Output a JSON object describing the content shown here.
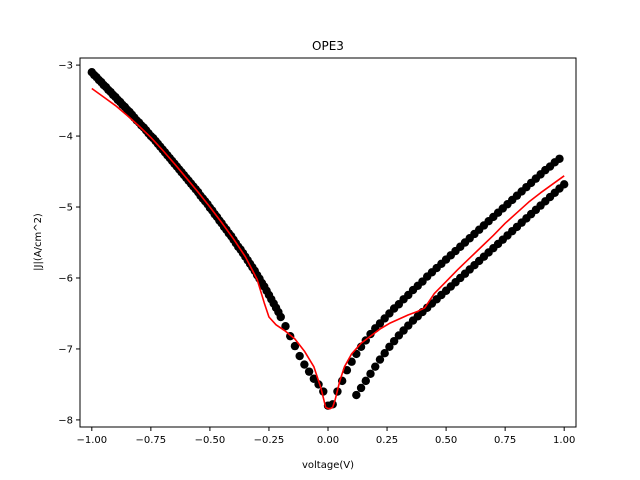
{
  "chart_data": {
    "type": "scatter",
    "title": "OPE3",
    "xlabel": "voltage(V)",
    "ylabel": "|J|(A/cm^2)",
    "xlim": [
      -1.05,
      1.05
    ],
    "ylim": [
      -8.1,
      -2.9
    ],
    "x_ticks": [
      -1.0,
      -0.75,
      -0.5,
      -0.25,
      0.0,
      0.25,
      0.5,
      0.75,
      1.0
    ],
    "x_tick_labels": [
      "−1.00",
      "−0.75",
      "−0.50",
      "−0.25",
      "0.00",
      "0.25",
      "0.50",
      "0.75",
      "1.00"
    ],
    "y_ticks": [
      -8,
      -7,
      -6,
      -5,
      -4,
      -3
    ],
    "y_tick_labels": [
      "−8",
      "−7",
      "−6",
      "−5",
      "−4",
      "−3"
    ],
    "grid": false,
    "series": [
      {
        "kind": "scatter",
        "color": "#000000",
        "points": [
          [
            -1.0,
            -3.1
          ],
          [
            -0.98,
            -3.17
          ],
          [
            -0.96,
            -3.24
          ],
          [
            -0.94,
            -3.31
          ],
          [
            -0.92,
            -3.38
          ],
          [
            -0.9,
            -3.45
          ],
          [
            -0.88,
            -3.52
          ],
          [
            -0.86,
            -3.59
          ],
          [
            -0.84,
            -3.66
          ],
          [
            -0.82,
            -3.74
          ],
          [
            -0.8,
            -3.81
          ],
          [
            -0.78,
            -3.88
          ],
          [
            -0.76,
            -3.96
          ],
          [
            -0.74,
            -4.03
          ],
          [
            -0.72,
            -4.11
          ],
          [
            -0.7,
            -4.19
          ],
          [
            -0.68,
            -4.27
          ],
          [
            -0.66,
            -4.35
          ],
          [
            -0.64,
            -4.43
          ],
          [
            -0.62,
            -4.51
          ],
          [
            -0.6,
            -4.59
          ],
          [
            -0.58,
            -4.67
          ],
          [
            -0.56,
            -4.75
          ],
          [
            -0.54,
            -4.84
          ],
          [
            -0.52,
            -4.92
          ],
          [
            -0.5,
            -5.01
          ],
          [
            -0.48,
            -5.1
          ],
          [
            -0.46,
            -5.19
          ],
          [
            -0.44,
            -5.28
          ],
          [
            -0.42,
            -5.37
          ],
          [
            -0.4,
            -5.46
          ],
          [
            -0.38,
            -5.56
          ],
          [
            -0.36,
            -5.65
          ],
          [
            -0.34,
            -5.75
          ],
          [
            -0.32,
            -5.85
          ],
          [
            -0.3,
            -5.96
          ],
          [
            -0.28,
            -6.07
          ],
          [
            -0.26,
            -6.18
          ],
          [
            -0.24,
            -6.3
          ],
          [
            -0.22,
            -6.42
          ],
          [
            -0.2,
            -6.55
          ],
          [
            -0.18,
            -6.68
          ],
          [
            -0.16,
            -6.82
          ],
          [
            -0.14,
            -6.96
          ],
          [
            -0.12,
            -7.1
          ],
          [
            -0.1,
            -7.22
          ],
          [
            -0.08,
            -7.32
          ],
          [
            -0.06,
            -7.42
          ],
          [
            -0.04,
            -7.5
          ],
          [
            -0.02,
            -7.6
          ],
          [
            0.0,
            -7.8
          ],
          [
            0.02,
            -7.78
          ],
          [
            0.04,
            -7.6
          ],
          [
            0.06,
            -7.45
          ],
          [
            0.08,
            -7.3
          ],
          [
            0.1,
            -7.18
          ],
          [
            0.12,
            -7.07
          ],
          [
            0.14,
            -6.97
          ],
          [
            0.16,
            -6.88
          ],
          [
            0.18,
            -6.79
          ],
          [
            0.2,
            -6.71
          ],
          [
            0.22,
            -6.64
          ],
          [
            0.24,
            -6.57
          ],
          [
            0.26,
            -6.5
          ],
          [
            0.28,
            -6.43
          ],
          [
            0.3,
            -6.37
          ],
          [
            0.32,
            -6.3
          ],
          [
            0.34,
            -6.24
          ],
          [
            0.36,
            -6.17
          ],
          [
            0.38,
            -6.11
          ],
          [
            0.4,
            -6.05
          ],
          [
            0.42,
            -5.98
          ],
          [
            0.44,
            -5.92
          ],
          [
            0.46,
            -5.86
          ],
          [
            0.48,
            -5.8
          ],
          [
            0.5,
            -5.74
          ],
          [
            0.52,
            -5.68
          ],
          [
            0.54,
            -5.62
          ],
          [
            0.56,
            -5.56
          ],
          [
            0.58,
            -5.5
          ],
          [
            0.6,
            -5.44
          ],
          [
            0.62,
            -5.38
          ],
          [
            0.64,
            -5.32
          ],
          [
            0.66,
            -5.26
          ],
          [
            0.68,
            -5.2
          ],
          [
            0.7,
            -5.14
          ],
          [
            0.72,
            -5.08
          ],
          [
            0.74,
            -5.02
          ],
          [
            0.76,
            -4.96
          ],
          [
            0.78,
            -4.9
          ],
          [
            0.8,
            -4.84
          ],
          [
            0.82,
            -4.78
          ],
          [
            0.84,
            -4.72
          ],
          [
            0.86,
            -4.66
          ],
          [
            0.88,
            -4.6
          ],
          [
            0.9,
            -4.54
          ],
          [
            0.92,
            -4.48
          ],
          [
            0.94,
            -4.43
          ],
          [
            0.96,
            -4.37
          ],
          [
            0.98,
            -4.32
          ],
          [
            1.0,
            -4.68
          ],
          [
            0.98,
            -4.74
          ],
          [
            0.96,
            -4.8
          ],
          [
            0.94,
            -4.86
          ],
          [
            0.92,
            -4.92
          ],
          [
            0.9,
            -4.98
          ],
          [
            0.88,
            -5.04
          ],
          [
            0.86,
            -5.1
          ],
          [
            0.84,
            -5.16
          ],
          [
            0.82,
            -5.22
          ],
          [
            0.8,
            -5.28
          ],
          [
            0.78,
            -5.34
          ],
          [
            0.76,
            -5.4
          ],
          [
            0.74,
            -5.46
          ],
          [
            0.72,
            -5.52
          ],
          [
            0.7,
            -5.58
          ],
          [
            0.68,
            -5.64
          ],
          [
            0.66,
            -5.7
          ],
          [
            0.64,
            -5.76
          ],
          [
            0.62,
            -5.82
          ],
          [
            0.6,
            -5.88
          ],
          [
            0.58,
            -5.94
          ],
          [
            0.56,
            -6.0
          ],
          [
            0.54,
            -6.06
          ],
          [
            0.52,
            -6.12
          ],
          [
            0.5,
            -6.18
          ],
          [
            0.48,
            -6.24
          ],
          [
            0.46,
            -6.3
          ],
          [
            0.44,
            -6.36
          ],
          [
            0.42,
            -6.42
          ],
          [
            0.4,
            -6.48
          ],
          [
            0.38,
            -6.54
          ],
          [
            0.36,
            -6.6
          ],
          [
            0.34,
            -6.67
          ],
          [
            0.32,
            -6.74
          ],
          [
            0.3,
            -6.81
          ],
          [
            0.28,
            -6.89
          ],
          [
            0.26,
            -6.97
          ],
          [
            0.24,
            -7.06
          ],
          [
            0.22,
            -7.15
          ],
          [
            0.2,
            -7.25
          ],
          [
            0.18,
            -7.35
          ],
          [
            0.16,
            -7.45
          ],
          [
            0.14,
            -7.55
          ],
          [
            0.12,
            -7.65
          ],
          [
            -0.99,
            -3.14
          ],
          [
            -0.97,
            -3.21
          ],
          [
            -0.95,
            -3.28
          ],
          [
            -0.93,
            -3.35
          ],
          [
            -0.91,
            -3.42
          ],
          [
            -0.89,
            -3.49
          ],
          [
            -0.87,
            -3.56
          ],
          [
            -0.85,
            -3.63
          ],
          [
            -0.83,
            -3.7
          ],
          [
            -0.81,
            -3.78
          ],
          [
            -0.79,
            -3.85
          ],
          [
            -0.77,
            -3.92
          ],
          [
            -0.75,
            -4.0
          ],
          [
            -0.73,
            -4.07
          ],
          [
            -0.71,
            -4.15
          ],
          [
            -0.69,
            -4.23
          ],
          [
            -0.67,
            -4.31
          ],
          [
            -0.65,
            -4.39
          ],
          [
            -0.63,
            -4.47
          ],
          [
            -0.61,
            -4.55
          ],
          [
            -0.59,
            -4.63
          ],
          [
            -0.57,
            -4.71
          ],
          [
            -0.55,
            -4.79
          ],
          [
            -0.53,
            -4.88
          ],
          [
            -0.51,
            -4.96
          ],
          [
            -0.49,
            -5.05
          ],
          [
            -0.47,
            -5.14
          ],
          [
            -0.45,
            -5.23
          ],
          [
            -0.43,
            -5.32
          ],
          [
            -0.41,
            -5.41
          ],
          [
            -0.39,
            -5.51
          ],
          [
            -0.37,
            -5.6
          ],
          [
            -0.35,
            -5.7
          ],
          [
            -0.33,
            -5.8
          ],
          [
            -0.31,
            -5.9
          ],
          [
            -0.29,
            -6.01
          ],
          [
            -0.27,
            -6.12
          ],
          [
            -0.25,
            -6.24
          ],
          [
            -0.23,
            -6.36
          ],
          [
            -0.21,
            -6.48
          ]
        ]
      },
      {
        "kind": "line",
        "color": "#ff0000",
        "points": [
          [
            -1.0,
            -3.33
          ],
          [
            -0.95,
            -3.45
          ],
          [
            -0.9,
            -3.57
          ],
          [
            -0.85,
            -3.71
          ],
          [
            -0.8,
            -3.86
          ],
          [
            -0.75,
            -4.02
          ],
          [
            -0.7,
            -4.2
          ],
          [
            -0.65,
            -4.39
          ],
          [
            -0.6,
            -4.59
          ],
          [
            -0.55,
            -4.79
          ],
          [
            -0.5,
            -5.0
          ],
          [
            -0.45,
            -5.22
          ],
          [
            -0.4,
            -5.45
          ],
          [
            -0.35,
            -5.7
          ],
          [
            -0.3,
            -6.02
          ],
          [
            -0.27,
            -6.35
          ],
          [
            -0.25,
            -6.55
          ],
          [
            -0.22,
            -6.66
          ],
          [
            -0.18,
            -6.75
          ],
          [
            -0.14,
            -6.86
          ],
          [
            -0.1,
            -7.03
          ],
          [
            -0.06,
            -7.25
          ],
          [
            -0.03,
            -7.55
          ],
          [
            -0.01,
            -7.82
          ],
          [
            0.0,
            -7.84
          ],
          [
            0.01,
            -7.84
          ],
          [
            0.02,
            -7.82
          ],
          [
            0.03,
            -7.72
          ],
          [
            0.05,
            -7.45
          ],
          [
            0.07,
            -7.25
          ],
          [
            0.1,
            -7.07
          ],
          [
            0.14,
            -6.92
          ],
          [
            0.18,
            -6.82
          ],
          [
            0.22,
            -6.72
          ],
          [
            0.26,
            -6.64
          ],
          [
            0.3,
            -6.58
          ],
          [
            0.34,
            -6.52
          ],
          [
            0.38,
            -6.47
          ],
          [
            0.41,
            -6.42
          ],
          [
            0.42,
            -6.37
          ],
          [
            0.45,
            -6.22
          ],
          [
            0.5,
            -6.05
          ],
          [
            0.55,
            -5.88
          ],
          [
            0.6,
            -5.72
          ],
          [
            0.65,
            -5.56
          ],
          [
            0.7,
            -5.4
          ],
          [
            0.75,
            -5.23
          ],
          [
            0.8,
            -5.08
          ],
          [
            0.85,
            -4.93
          ],
          [
            0.9,
            -4.8
          ],
          [
            0.95,
            -4.68
          ],
          [
            1.0,
            -4.56
          ]
        ]
      }
    ]
  }
}
